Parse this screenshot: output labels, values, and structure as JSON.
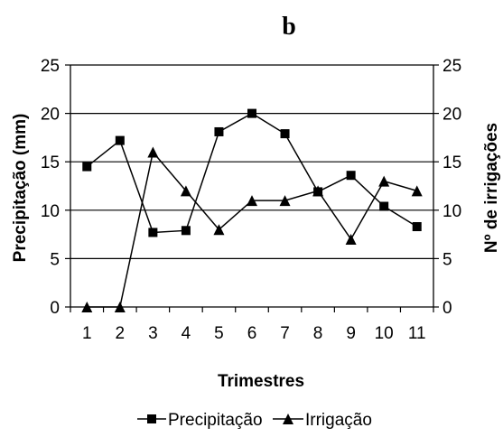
{
  "chart_data": {
    "type": "line",
    "title": "b",
    "xlabel": "Trimestres",
    "ylabel_left": "Precipitação (mm)",
    "ylabel_right": "Nº de irrigações",
    "x": [
      1,
      2,
      3,
      4,
      5,
      6,
      7,
      8,
      9,
      10,
      11
    ],
    "ylim": [
      0,
      25
    ],
    "yticks": [
      0,
      5,
      10,
      15,
      20,
      25
    ],
    "grid": "horizontal",
    "legend_position": "bottom",
    "series": [
      {
        "name": "Precipitação",
        "axis": "left",
        "marker": "square",
        "values": [
          14.5,
          17.2,
          7.7,
          7.9,
          18.1,
          20.0,
          17.9,
          11.9,
          13.6,
          10.4,
          8.3
        ]
      },
      {
        "name": "Irrigação",
        "axis": "right",
        "marker": "triangle",
        "values": [
          0,
          0,
          16,
          12,
          8,
          11,
          11,
          12,
          7,
          13,
          12
        ]
      }
    ],
    "colors": {
      "line": "#000000",
      "grid": "#000000",
      "background": "#ffffff"
    }
  }
}
